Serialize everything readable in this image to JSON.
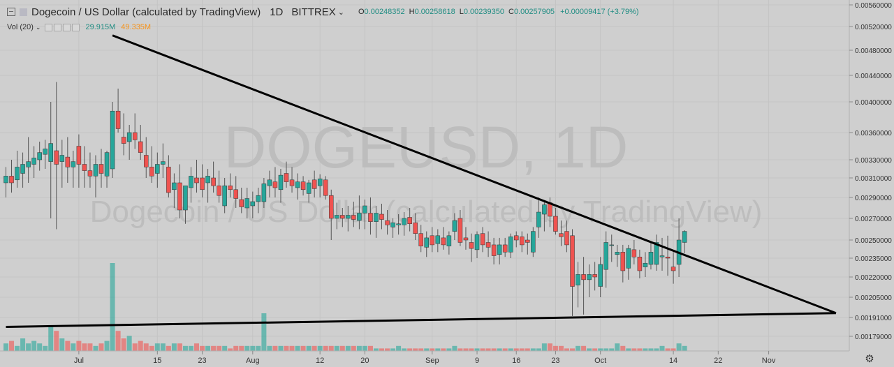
{
  "header": {
    "title": "Dogecoin / US Dollar (calculated by TradingView)",
    "timeframe": "1D",
    "exchange": "BITTREX",
    "open_label": "O",
    "open": "0.00248352",
    "high_label": "H",
    "high": "0.00258618",
    "low_label": "L",
    "low": "0.00239350",
    "close_label": "C",
    "close": "0.00257905",
    "change": "+0.00009417 (+3.79%)"
  },
  "volume_legend": {
    "label": "Vol (20)",
    "value1": "29.915M",
    "value2": "49.335M"
  },
  "watermark": {
    "line1": "DOGEUSD, 1D",
    "line2": "Dogecoin / US Dollar (calculated by TradingView)"
  },
  "colors": {
    "up": "#26a69a",
    "down": "#ef5350",
    "background": "#cfcfcf",
    "trendline": "#000000"
  },
  "chart_data": {
    "type": "candlestick",
    "symbol": "DOGEUSD",
    "interval": "1D",
    "y_ticks": [
      "0.00560000",
      "0.00520000",
      "0.00480000",
      "0.00440000",
      "0.00400000",
      "0.00360000",
      "0.00330000",
      "0.00310000",
      "0.00290000",
      "0.00270000",
      "0.00250000",
      "0.00235000",
      "0.00220000",
      "0.00205000",
      "0.00191000",
      "0.00179000"
    ],
    "x_ticks": [
      {
        "label": "Jul",
        "index": 13
      },
      {
        "label": "15",
        "index": 27
      },
      {
        "label": "23",
        "index": 35
      },
      {
        "label": "Aug",
        "index": 44
      },
      {
        "label": "12",
        "index": 56
      },
      {
        "label": "20",
        "index": 64
      },
      {
        "label": "Sep",
        "index": 76
      },
      {
        "label": "9",
        "index": 84
      },
      {
        "label": "16",
        "index": 91
      },
      {
        "label": "23",
        "index": 98
      },
      {
        "label": "Oct",
        "index": 106
      },
      {
        "label": "14",
        "index": 119
      },
      {
        "label": "22",
        "index": 127
      },
      {
        "label": "Nov",
        "index": 136
      }
    ],
    "candles": [
      {
        "o": 0.00305,
        "h": 0.00322,
        "l": 0.0029,
        "c": 0.00312
      },
      {
        "o": 0.00312,
        "h": 0.0033,
        "l": 0.00295,
        "c": 0.00305
      },
      {
        "o": 0.00308,
        "h": 0.0034,
        "l": 0.003,
        "c": 0.00322
      },
      {
        "o": 0.00315,
        "h": 0.00338,
        "l": 0.003,
        "c": 0.00325
      },
      {
        "o": 0.00322,
        "h": 0.00355,
        "l": 0.00305,
        "c": 0.00328
      },
      {
        "o": 0.00325,
        "h": 0.00345,
        "l": 0.0031,
        "c": 0.00332
      },
      {
        "o": 0.0033,
        "h": 0.0035,
        "l": 0.00318,
        "c": 0.00338
      },
      {
        "o": 0.00336,
        "h": 0.00352,
        "l": 0.0032,
        "c": 0.00342
      },
      {
        "o": 0.00328,
        "h": 0.004,
        "l": 0.0027,
        "c": 0.00348
      },
      {
        "o": 0.0034,
        "h": 0.0043,
        "l": 0.0026,
        "c": 0.00325
      },
      {
        "o": 0.00328,
        "h": 0.00352,
        "l": 0.003,
        "c": 0.00335
      },
      {
        "o": 0.00333,
        "h": 0.00355,
        "l": 0.00305,
        "c": 0.00322
      },
      {
        "o": 0.00322,
        "h": 0.0034,
        "l": 0.003,
        "c": 0.00328
      },
      {
        "o": 0.00345,
        "h": 0.00358,
        "l": 0.003,
        "c": 0.00325
      },
      {
        "o": 0.00325,
        "h": 0.00345,
        "l": 0.003,
        "c": 0.00318
      },
      {
        "o": 0.00318,
        "h": 0.00338,
        "l": 0.003,
        "c": 0.00312
      },
      {
        "o": 0.00312,
        "h": 0.00335,
        "l": 0.0029,
        "c": 0.00325
      },
      {
        "o": 0.00325,
        "h": 0.00342,
        "l": 0.003,
        "c": 0.00315
      },
      {
        "o": 0.00312,
        "h": 0.0034,
        "l": 0.003,
        "c": 0.00338
      },
      {
        "o": 0.0032,
        "h": 0.004,
        "l": 0.0031,
        "c": 0.00388
      },
      {
        "o": 0.00388,
        "h": 0.0042,
        "l": 0.0036,
        "c": 0.00365
      },
      {
        "o": 0.00355,
        "h": 0.00385,
        "l": 0.00335,
        "c": 0.00348
      },
      {
        "o": 0.0035,
        "h": 0.0037,
        "l": 0.0033,
        "c": 0.0036
      },
      {
        "o": 0.0036,
        "h": 0.00385,
        "l": 0.00342,
        "c": 0.00352
      },
      {
        "o": 0.0035,
        "h": 0.0037,
        "l": 0.0033,
        "c": 0.00338
      },
      {
        "o": 0.00335,
        "h": 0.00355,
        "l": 0.0031,
        "c": 0.00322
      },
      {
        "o": 0.00322,
        "h": 0.00345,
        "l": 0.00305,
        "c": 0.00312
      },
      {
        "o": 0.00315,
        "h": 0.00338,
        "l": 0.003,
        "c": 0.00325
      },
      {
        "o": 0.00325,
        "h": 0.00348,
        "l": 0.0031,
        "c": 0.00328
      },
      {
        "o": 0.00322,
        "h": 0.00335,
        "l": 0.0029,
        "c": 0.00295
      },
      {
        "o": 0.00298,
        "h": 0.00315,
        "l": 0.0028,
        "c": 0.00305
      },
      {
        "o": 0.00305,
        "h": 0.00325,
        "l": 0.0027,
        "c": 0.00278
      },
      {
        "o": 0.00278,
        "h": 0.003,
        "l": 0.00265,
        "c": 0.00302
      },
      {
        "o": 0.003,
        "h": 0.00322,
        "l": 0.00285,
        "c": 0.00312
      },
      {
        "o": 0.0031,
        "h": 0.0033,
        "l": 0.00295,
        "c": 0.00305
      },
      {
        "o": 0.0031,
        "h": 0.00325,
        "l": 0.0029,
        "c": 0.00298
      },
      {
        "o": 0.00305,
        "h": 0.0032,
        "l": 0.00285,
        "c": 0.00312
      },
      {
        "o": 0.0031,
        "h": 0.00328,
        "l": 0.00295,
        "c": 0.00302
      },
      {
        "o": 0.00302,
        "h": 0.00318,
        "l": 0.00285,
        "c": 0.00292
      },
      {
        "o": 0.00282,
        "h": 0.0031,
        "l": 0.00275,
        "c": 0.00302
      },
      {
        "o": 0.00302,
        "h": 0.00315,
        "l": 0.0029,
        "c": 0.00298
      },
      {
        "o": 0.00298,
        "h": 0.00312,
        "l": 0.0028,
        "c": 0.00289
      },
      {
        "o": 0.00288,
        "h": 0.003,
        "l": 0.00275,
        "c": 0.00281
      },
      {
        "o": 0.0028,
        "h": 0.003,
        "l": 0.0027,
        "c": 0.00289
      },
      {
        "o": 0.00282,
        "h": 0.00296,
        "l": 0.0027,
        "c": 0.00286
      },
      {
        "o": 0.00286,
        "h": 0.003,
        "l": 0.00275,
        "c": 0.00292
      },
      {
        "o": 0.00286,
        "h": 0.0031,
        "l": 0.0028,
        "c": 0.00304
      },
      {
        "o": 0.00302,
        "h": 0.00318,
        "l": 0.0029,
        "c": 0.00308
      },
      {
        "o": 0.00306,
        "h": 0.00322,
        "l": 0.0029,
        "c": 0.003
      },
      {
        "o": 0.00298,
        "h": 0.0032,
        "l": 0.00285,
        "c": 0.00313
      },
      {
        "o": 0.00315,
        "h": 0.00328,
        "l": 0.003,
        "c": 0.00306
      },
      {
        "o": 0.00308,
        "h": 0.00322,
        "l": 0.00295,
        "c": 0.00302
      },
      {
        "o": 0.003,
        "h": 0.00315,
        "l": 0.00288,
        "c": 0.00306
      },
      {
        "o": 0.00306,
        "h": 0.00312,
        "l": 0.00292,
        "c": 0.00298
      },
      {
        "o": 0.00294,
        "h": 0.00308,
        "l": 0.00285,
        "c": 0.00305
      },
      {
        "o": 0.00308,
        "h": 0.00318,
        "l": 0.0029,
        "c": 0.00299
      },
      {
        "o": 0.00302,
        "h": 0.00314,
        "l": 0.0029,
        "c": 0.00309
      },
      {
        "o": 0.00308,
        "h": 0.00312,
        "l": 0.00288,
        "c": 0.00292
      },
      {
        "o": 0.00292,
        "h": 0.00298,
        "l": 0.0025,
        "c": 0.0027
      },
      {
        "o": 0.0027,
        "h": 0.00285,
        "l": 0.0026,
        "c": 0.00273
      },
      {
        "o": 0.00273,
        "h": 0.0028,
        "l": 0.00262,
        "c": 0.0027
      },
      {
        "o": 0.0027,
        "h": 0.00282,
        "l": 0.00258,
        "c": 0.00273
      },
      {
        "o": 0.00273,
        "h": 0.00286,
        "l": 0.00262,
        "c": 0.00269
      },
      {
        "o": 0.00268,
        "h": 0.00292,
        "l": 0.0026,
        "c": 0.00275
      },
      {
        "o": 0.00275,
        "h": 0.00288,
        "l": 0.0026,
        "c": 0.00282
      },
      {
        "o": 0.00275,
        "h": 0.0029,
        "l": 0.00255,
        "c": 0.00267
      },
      {
        "o": 0.00267,
        "h": 0.00282,
        "l": 0.00252,
        "c": 0.00275
      },
      {
        "o": 0.00274,
        "h": 0.00284,
        "l": 0.0026,
        "c": 0.00269
      },
      {
        "o": 0.00268,
        "h": 0.00278,
        "l": 0.00255,
        "c": 0.00264
      },
      {
        "o": 0.00262,
        "h": 0.0027,
        "l": 0.00252,
        "c": 0.00266
      },
      {
        "o": 0.00264,
        "h": 0.00274,
        "l": 0.00255,
        "c": 0.00265
      },
      {
        "o": 0.00264,
        "h": 0.00276,
        "l": 0.00254,
        "c": 0.0027
      },
      {
        "o": 0.00271,
        "h": 0.0028,
        "l": 0.00258,
        "c": 0.00265
      },
      {
        "o": 0.00266,
        "h": 0.00275,
        "l": 0.0025,
        "c": 0.00256
      },
      {
        "o": 0.00256,
        "h": 0.00264,
        "l": 0.0024,
        "c": 0.00245
      },
      {
        "o": 0.00244,
        "h": 0.00258,
        "l": 0.00236,
        "c": 0.00252
      },
      {
        "o": 0.00254,
        "h": 0.00262,
        "l": 0.0024,
        "c": 0.00246
      },
      {
        "o": 0.00247,
        "h": 0.0026,
        "l": 0.0024,
        "c": 0.00254
      },
      {
        "o": 0.00252,
        "h": 0.00262,
        "l": 0.00242,
        "c": 0.00246
      },
      {
        "o": 0.00245,
        "h": 0.00258,
        "l": 0.00238,
        "c": 0.00254
      },
      {
        "o": 0.00258,
        "h": 0.00275,
        "l": 0.0025,
        "c": 0.00268
      },
      {
        "o": 0.0027,
        "h": 0.00278,
        "l": 0.00245,
        "c": 0.00248
      },
      {
        "o": 0.00252,
        "h": 0.00262,
        "l": 0.00242,
        "c": 0.0025
      },
      {
        "o": 0.00248,
        "h": 0.00256,
        "l": 0.00232,
        "c": 0.00243
      },
      {
        "o": 0.00242,
        "h": 0.00258,
        "l": 0.00235,
        "c": 0.00255
      },
      {
        "o": 0.00256,
        "h": 0.00262,
        "l": 0.0024,
        "c": 0.00246
      },
      {
        "o": 0.00248,
        "h": 0.00258,
        "l": 0.00236,
        "c": 0.00244
      },
      {
        "o": 0.00246,
        "h": 0.00252,
        "l": 0.0023,
        "c": 0.00237
      },
      {
        "o": 0.00238,
        "h": 0.00252,
        "l": 0.0023,
        "c": 0.00246
      },
      {
        "o": 0.00246,
        "h": 0.00252,
        "l": 0.00236,
        "c": 0.0024
      },
      {
        "o": 0.0024,
        "h": 0.00256,
        "l": 0.00235,
        "c": 0.00253
      },
      {
        "o": 0.00254,
        "h": 0.00258,
        "l": 0.00244,
        "c": 0.0025
      },
      {
        "o": 0.00253,
        "h": 0.00258,
        "l": 0.0024,
        "c": 0.00246
      },
      {
        "o": 0.0025,
        "h": 0.00256,
        "l": 0.00238,
        "c": 0.00248
      },
      {
        "o": 0.0024,
        "h": 0.00262,
        "l": 0.00236,
        "c": 0.00258
      },
      {
        "o": 0.00262,
        "h": 0.0029,
        "l": 0.00252,
        "c": 0.00276
      },
      {
        "o": 0.00274,
        "h": 0.00286,
        "l": 0.00258,
        "c": 0.00283
      },
      {
        "o": 0.00285,
        "h": 0.0029,
        "l": 0.00262,
        "c": 0.00272
      },
      {
        "o": 0.00272,
        "h": 0.0028,
        "l": 0.00255,
        "c": 0.00258
      },
      {
        "o": 0.00256,
        "h": 0.00268,
        "l": 0.00245,
        "c": 0.00253
      },
      {
        "o": 0.00258,
        "h": 0.00268,
        "l": 0.0024,
        "c": 0.00246
      },
      {
        "o": 0.00254,
        "h": 0.0026,
        "l": 0.00192,
        "c": 0.00213
      },
      {
        "o": 0.00214,
        "h": 0.00232,
        "l": 0.00198,
        "c": 0.00222
      },
      {
        "o": 0.00222,
        "h": 0.00236,
        "l": 0.00193,
        "c": 0.00218
      },
      {
        "o": 0.00218,
        "h": 0.0023,
        "l": 0.00205,
        "c": 0.00222
      },
      {
        "o": 0.00222,
        "h": 0.00232,
        "l": 0.0021,
        "c": 0.0022
      },
      {
        "o": 0.00213,
        "h": 0.00236,
        "l": 0.00205,
        "c": 0.0023
      },
      {
        "o": 0.00226,
        "h": 0.00258,
        "l": 0.00212,
        "c": 0.00248
      },
      {
        "o": 0.00246,
        "h": 0.00255,
        "l": 0.00232,
        "c": 0.00246
      },
      {
        "o": 0.00238,
        "h": 0.00246,
        "l": 0.00228,
        "c": 0.0024
      },
      {
        "o": 0.0024,
        "h": 0.00246,
        "l": 0.00216,
        "c": 0.00225
      },
      {
        "o": 0.00227,
        "h": 0.00246,
        "l": 0.00218,
        "c": 0.00243
      },
      {
        "o": 0.00242,
        "h": 0.0025,
        "l": 0.0023,
        "c": 0.00236
      },
      {
        "o": 0.00236,
        "h": 0.00242,
        "l": 0.00219,
        "c": 0.00225
      },
      {
        "o": 0.00228,
        "h": 0.0024,
        "l": 0.0022,
        "c": 0.00231
      },
      {
        "o": 0.0023,
        "h": 0.00248,
        "l": 0.00226,
        "c": 0.0024
      },
      {
        "o": 0.0023,
        "h": 0.00255,
        "l": 0.00225,
        "c": 0.00248
      },
      {
        "o": 0.00236,
        "h": 0.00252,
        "l": 0.00225,
        "c": 0.00237
      },
      {
        "o": 0.00236,
        "h": 0.00254,
        "l": 0.00221,
        "c": 0.00235
      },
      {
        "o": 0.00228,
        "h": 0.0024,
        "l": 0.00215,
        "c": 0.00225
      },
      {
        "o": 0.0023,
        "h": 0.0027,
        "l": 0.0022,
        "c": 0.0025
      },
      {
        "o": 0.00248,
        "h": 0.00259,
        "l": 0.00239,
        "c": 0.00258
      }
    ],
    "volume": [
      3,
      4,
      2,
      5,
      3,
      4,
      3,
      2,
      10,
      8,
      5,
      4,
      3,
      4,
      3,
      3,
      2,
      3,
      4,
      35,
      8,
      5,
      6,
      3,
      4,
      3,
      2,
      3,
      3,
      2,
      3,
      3,
      2,
      2,
      3,
      2,
      2,
      2,
      2,
      2,
      1,
      2,
      2,
      2,
      2,
      2,
      15,
      2,
      2,
      2,
      2,
      2,
      2,
      2,
      2,
      2,
      2,
      2,
      2,
      2,
      2,
      2,
      2,
      2,
      2,
      2,
      1,
      1,
      1,
      1,
      2,
      1,
      1,
      1,
      1,
      1,
      1,
      1,
      1,
      1,
      2,
      1,
      1,
      1,
      1,
      1,
      1,
      1,
      1,
      1,
      1,
      1,
      1,
      1,
      1,
      1,
      3,
      3,
      2,
      2,
      1,
      1,
      2,
      2,
      1,
      1,
      1,
      1,
      1,
      3,
      2,
      1,
      1,
      1,
      1,
      1,
      1,
      2,
      1,
      1,
      3,
      2
    ],
    "trendlines": [
      {
        "name": "upper",
        "from": {
          "index": 19,
          "price": 0.00505
        },
        "to": {
          "index": 148,
          "price": 0.00194
        }
      },
      {
        "name": "lower",
        "from": {
          "index": 0,
          "price": 0.00185
        },
        "to": {
          "index": 148,
          "price": 0.00194
        }
      }
    ]
  }
}
